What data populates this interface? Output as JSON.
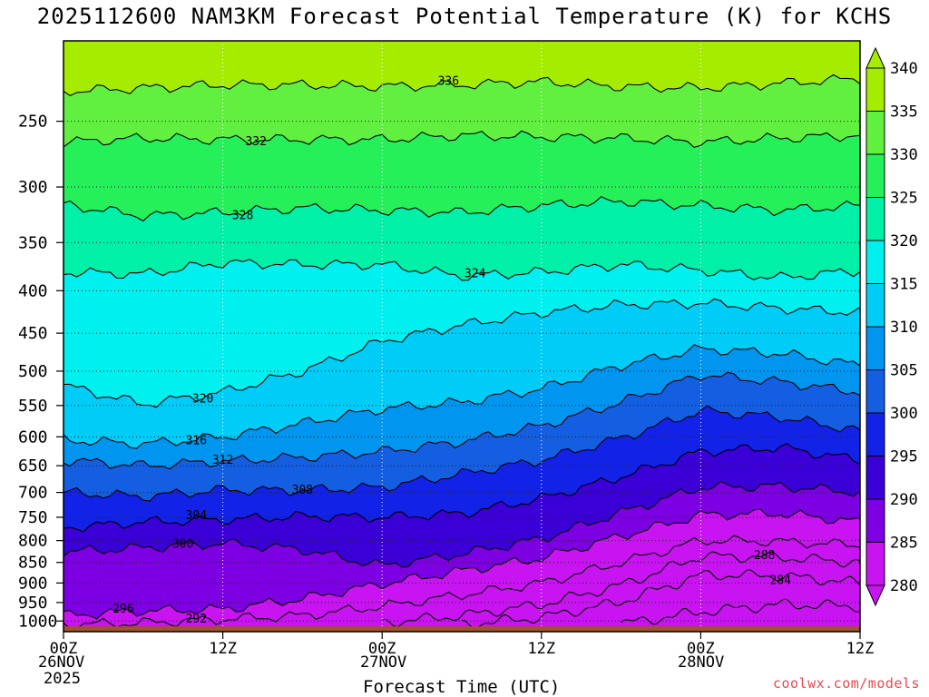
{
  "title": "2025112600 NAM3KM Forecast Potential Temperature (K) for KCHS",
  "credit": "coolwx.com/models",
  "chart_data": {
    "type": "heatmap",
    "variable": "Potential Temperature (K)",
    "station": "KCHS",
    "model": "NAM3KM",
    "init": "2025112600",
    "xlabel": "Forecast Time (UTC)",
    "ylabel": "",
    "y_axis": "pressure (hPa), log scale, inverted",
    "ylim": [
      1030,
      200
    ],
    "xlim_hours": [
      0,
      60
    ],
    "x_ticks": [
      {
        "hour": 0,
        "label": "00Z",
        "date": "26NOV",
        "year": "2025"
      },
      {
        "hour": 12,
        "label": "12Z"
      },
      {
        "hour": 24,
        "label": "00Z",
        "date": "27NOV"
      },
      {
        "hour": 36,
        "label": "12Z"
      },
      {
        "hour": 48,
        "label": "00Z",
        "date": "28NOV"
      },
      {
        "hour": 60,
        "label": "12Z"
      }
    ],
    "y_ticks": [
      250,
      300,
      350,
      400,
      450,
      500,
      550,
      600,
      650,
      700,
      750,
      800,
      850,
      900,
      950,
      1000
    ],
    "colorbar": {
      "ticks": [
        340,
        335,
        330,
        325,
        320,
        315,
        310,
        305,
        300,
        295,
        290,
        285,
        280
      ],
      "colors": [
        "#a5ec00",
        "#62f040",
        "#25f05a",
        "#00f0a8",
        "#00f0f0",
        "#00cdf7",
        "#0095ef",
        "#145ee2",
        "#1222e6",
        "#3a00d6",
        "#7c00e2",
        "#c814f0"
      ]
    },
    "series": [
      {
        "name": "336 K",
        "label": "336",
        "values": [
          [
            0,
            230
          ],
          [
            6,
            228
          ],
          [
            12,
            226
          ],
          [
            18,
            226
          ],
          [
            24,
            227
          ],
          [
            30,
            226
          ],
          [
            36,
            224
          ],
          [
            42,
            227
          ],
          [
            48,
            228
          ],
          [
            54,
            225
          ],
          [
            60,
            222
          ]
        ]
      },
      {
        "name": "332 K",
        "label": "332",
        "values": [
          [
            0,
            265
          ],
          [
            6,
            262
          ],
          [
            12,
            263
          ],
          [
            18,
            263
          ],
          [
            24,
            263
          ],
          [
            30,
            260
          ],
          [
            36,
            261
          ],
          [
            42,
            262
          ],
          [
            48,
            265
          ],
          [
            54,
            262
          ],
          [
            60,
            260
          ]
        ]
      },
      {
        "name": "328 K",
        "label": "328",
        "values": [
          [
            0,
            315
          ],
          [
            6,
            325
          ],
          [
            12,
            322
          ],
          [
            18,
            318
          ],
          [
            24,
            320
          ],
          [
            30,
            322
          ],
          [
            36,
            316
          ],
          [
            42,
            312
          ],
          [
            48,
            316
          ],
          [
            54,
            320
          ],
          [
            60,
            316
          ]
        ]
      },
      {
        "name": "324 K",
        "label": "324",
        "values": [
          [
            0,
            380
          ],
          [
            6,
            382
          ],
          [
            12,
            370
          ],
          [
            18,
            372
          ],
          [
            24,
            372
          ],
          [
            30,
            384
          ],
          [
            36,
            380
          ],
          [
            42,
            372
          ],
          [
            48,
            378
          ],
          [
            54,
            386
          ],
          [
            60,
            378
          ]
        ]
      },
      {
        "name": "320 K",
        "label": "320",
        "values": [
          [
            0,
            520
          ],
          [
            6,
            548
          ],
          [
            12,
            530
          ],
          [
            18,
            500
          ],
          [
            24,
            460
          ],
          [
            30,
            440
          ],
          [
            36,
            425
          ],
          [
            42,
            416
          ],
          [
            48,
            414
          ],
          [
            54,
            420
          ],
          [
            60,
            425
          ]
        ]
      },
      {
        "name": "316 K",
        "label": "316",
        "values": [
          [
            0,
            605
          ],
          [
            6,
            612
          ],
          [
            12,
            600
          ],
          [
            18,
            578
          ],
          [
            24,
            555
          ],
          [
            30,
            545
          ],
          [
            36,
            525
          ],
          [
            42,
            492
          ],
          [
            48,
            470
          ],
          [
            54,
            476
          ],
          [
            60,
            492
          ]
        ]
      },
      {
        "name": "312 K",
        "label": "312",
        "values": [
          [
            0,
            640
          ],
          [
            6,
            650
          ],
          [
            12,
            642
          ],
          [
            18,
            635
          ],
          [
            24,
            625
          ],
          [
            30,
            608
          ],
          [
            36,
            582
          ],
          [
            42,
            545
          ],
          [
            48,
            505
          ],
          [
            54,
            515
          ],
          [
            60,
            530
          ]
        ]
      },
      {
        "name": "308 K",
        "label": "308",
        "values": [
          [
            0,
            700
          ],
          [
            6,
            708
          ],
          [
            12,
            695
          ],
          [
            18,
            696
          ],
          [
            24,
            690
          ],
          [
            30,
            665
          ],
          [
            36,
            640
          ],
          [
            42,
            602
          ],
          [
            48,
            558
          ],
          [
            54,
            568
          ],
          [
            60,
            590
          ]
        ]
      },
      {
        "name": "304 K",
        "label": "304",
        "values": [
          [
            0,
            772
          ],
          [
            6,
            760
          ],
          [
            12,
            755
          ],
          [
            18,
            748
          ],
          [
            24,
            750
          ],
          [
            30,
            742
          ],
          [
            36,
            712
          ],
          [
            42,
            670
          ],
          [
            48,
            625
          ],
          [
            54,
            618
          ],
          [
            60,
            640
          ]
        ]
      },
      {
        "name": "300 K",
        "label": "300",
        "values": [
          [
            0,
            826
          ],
          [
            6,
            816
          ],
          [
            12,
            806
          ],
          [
            18,
            820
          ],
          [
            24,
            858
          ],
          [
            30,
            830
          ],
          [
            36,
            796
          ],
          [
            42,
            740
          ],
          [
            48,
            690
          ],
          [
            54,
            688
          ],
          [
            60,
            700
          ]
        ]
      },
      {
        "name": "296 K",
        "label": "296",
        "values": [
          [
            0,
            985
          ],
          [
            6,
            972
          ],
          [
            12,
            968
          ],
          [
            18,
            940
          ],
          [
            24,
            902
          ],
          [
            30,
            870
          ],
          [
            36,
            840
          ],
          [
            42,
            790
          ],
          [
            48,
            745
          ],
          [
            54,
            742
          ],
          [
            60,
            760
          ]
        ]
      },
      {
        "name": "292 K",
        "label": "292",
        "values": [
          [
            0,
            1010
          ],
          [
            6,
            1005
          ],
          [
            12,
            995
          ],
          [
            18,
            985
          ],
          [
            24,
            960
          ],
          [
            30,
            930
          ],
          [
            36,
            900
          ],
          [
            42,
            850
          ],
          [
            48,
            800
          ],
          [
            54,
            802
          ],
          [
            60,
            810
          ]
        ]
      },
      {
        "name": "288 K",
        "label": "288",
        "values": [
          [
            24,
            1005
          ],
          [
            30,
            985
          ],
          [
            36,
            955
          ],
          [
            42,
            905
          ],
          [
            48,
            835
          ],
          [
            54,
            838
          ],
          [
            60,
            850
          ]
        ]
      },
      {
        "name": "284 K",
        "label": "284",
        "values": [
          [
            30,
            1010
          ],
          [
            36,
            990
          ],
          [
            42,
            948
          ],
          [
            48,
            880
          ],
          [
            54,
            882
          ],
          [
            60,
            900
          ]
        ]
      },
      {
        "name": "280 K",
        "label": "",
        "values": [
          [
            42,
            1008
          ],
          [
            48,
            975
          ],
          [
            54,
            955
          ],
          [
            60,
            960
          ]
        ]
      }
    ]
  }
}
